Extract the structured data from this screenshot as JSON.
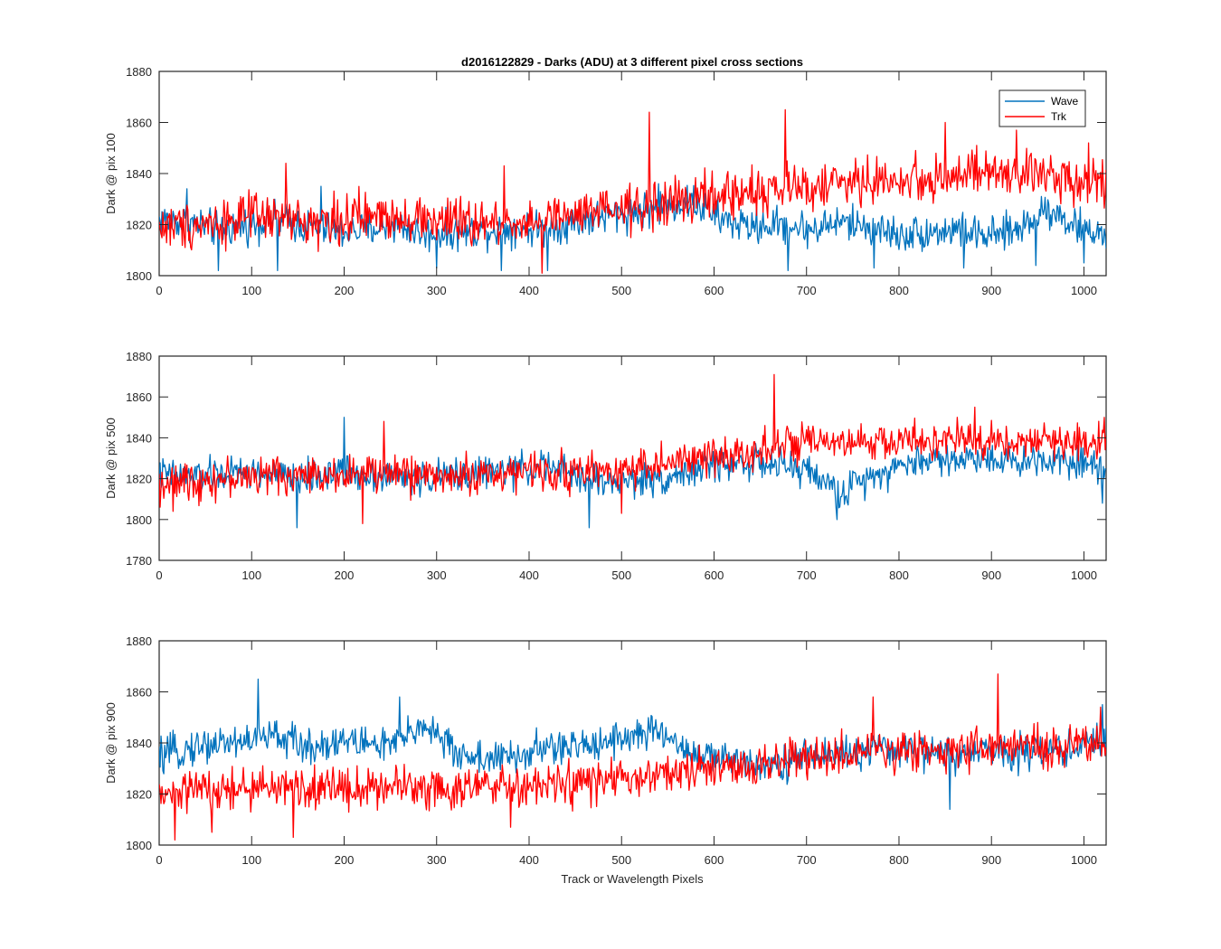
{
  "chart_data": {
    "type": "line",
    "title": "d2016122829 - Darks (ADU) at 3 different pixel cross sections",
    "xlabel": "Track or Wavelength Pixels",
    "legend": {
      "placement": "top-right",
      "entries": [
        "Wave",
        "Trk"
      ]
    },
    "colors": {
      "Wave": "#0072BD",
      "Trk": "#FF0000"
    },
    "grid": false,
    "subplots": [
      {
        "ylabel": "Dark @ pix 100",
        "xlim": [
          0,
          1024
        ],
        "ylim": [
          1800,
          1880
        ],
        "xticks": [
          0,
          100,
          200,
          300,
          400,
          500,
          600,
          700,
          800,
          900,
          1000
        ],
        "yticks": [
          1800,
          1820,
          1840,
          1860,
          1880
        ],
        "series": [
          {
            "name": "Wave",
            "x": [
              0,
              32,
              64,
              96,
              128,
              160,
              192,
              224,
              256,
              288,
              320,
              352,
              384,
              416,
              448,
              480,
              512,
              544,
              576,
              608,
              640,
              672,
              704,
              736,
              768,
              800,
              832,
              864,
              896,
              928,
              960,
              992,
              1024
            ],
            "y": [
              1822,
              1821,
              1818,
              1820,
              1822,
              1819,
              1817,
              1818,
              1820,
              1816,
              1817,
              1818,
              1819,
              1818,
              1821,
              1823,
              1825,
              1827,
              1829,
              1822,
              1819,
              1820,
              1818,
              1821,
              1819,
              1816,
              1817,
              1818,
              1815,
              1818,
              1827,
              1819,
              1816
            ],
            "noise": 6,
            "spikes": [
              [
                30,
                1834
              ],
              [
                64,
                1802
              ],
              [
                128,
                1802
              ],
              [
                175,
                1835
              ],
              [
                300,
                1803
              ],
              [
                370,
                1802
              ],
              [
                420,
                1802
              ],
              [
                540,
                1836
              ],
              [
                680,
                1802
              ],
              [
                773,
                1803
              ],
              [
                870,
                1803
              ],
              [
                948,
                1804
              ],
              [
                1000,
                1805
              ]
            ]
          },
          {
            "name": "Trk",
            "x": [
              0,
              32,
              64,
              96,
              128,
              160,
              192,
              224,
              256,
              288,
              320,
              352,
              384,
              416,
              448,
              480,
              512,
              544,
              576,
              608,
              640,
              672,
              704,
              736,
              768,
              800,
              832,
              864,
              896,
              928,
              960,
              992,
              1024
            ],
            "y": [
              1819,
              1820,
              1821,
              1823,
              1822,
              1821,
              1822,
              1823,
              1824,
              1822,
              1821,
              1820,
              1821,
              1822,
              1823,
              1825,
              1826,
              1828,
              1830,
              1831,
              1833,
              1834,
              1835,
              1836,
              1837,
              1837,
              1838,
              1839,
              1840,
              1839,
              1840,
              1838,
              1837
            ],
            "noise": 8,
            "spikes": [
              [
                137,
                1844
              ],
              [
                373,
                1843
              ],
              [
                414,
                1801
              ],
              [
                530,
                1864
              ],
              [
                677,
                1865
              ],
              [
                850,
                1860
              ],
              [
                927,
                1857
              ],
              [
                1005,
                1852
              ]
            ]
          }
        ]
      },
      {
        "ylabel": "Dark @ pix 500",
        "xlim": [
          0,
          1024
        ],
        "ylim": [
          1780,
          1880
        ],
        "xticks": [
          0,
          100,
          200,
          300,
          400,
          500,
          600,
          700,
          800,
          900,
          1000
        ],
        "yticks": [
          1780,
          1800,
          1820,
          1840,
          1860,
          1880
        ],
        "series": [
          {
            "name": "Wave",
            "x": [
              0,
              32,
              64,
              96,
              128,
              160,
              192,
              224,
              256,
              288,
              320,
              352,
              384,
              416,
              448,
              480,
              512,
              544,
              576,
              608,
              640,
              672,
              704,
              736,
              768,
              800,
              832,
              864,
              896,
              928,
              960,
              992,
              1024
            ],
            "y": [
              1822,
              1821,
              1822,
              1823,
              1821,
              1820,
              1824,
              1822,
              1821,
              1820,
              1822,
              1823,
              1824,
              1826,
              1822,
              1818,
              1819,
              1820,
              1824,
              1827,
              1828,
              1826,
              1824,
              1812,
              1822,
              1826,
              1830,
              1829,
              1831,
              1828,
              1830,
              1829,
              1825
            ],
            "noise": 7,
            "spikes": [
              [
                149,
                1796
              ],
              [
                200,
                1850
              ],
              [
                465,
                1796
              ],
              [
                733,
                1800
              ],
              [
                1020,
                1808
              ]
            ]
          },
          {
            "name": "Trk",
            "x": [
              0,
              32,
              64,
              96,
              128,
              160,
              192,
              224,
              256,
              288,
              320,
              352,
              384,
              416,
              448,
              480,
              512,
              544,
              576,
              608,
              640,
              672,
              704,
              736,
              768,
              800,
              832,
              864,
              896,
              928,
              960,
              992,
              1024
            ],
            "y": [
              1818,
              1819,
              1820,
              1821,
              1822,
              1821,
              1823,
              1822,
              1823,
              1822,
              1821,
              1822,
              1823,
              1824,
              1823,
              1824,
              1826,
              1827,
              1829,
              1831,
              1834,
              1836,
              1837,
              1836,
              1838,
              1838,
              1839,
              1838,
              1839,
              1838,
              1838,
              1838,
              1839
            ],
            "noise": 8,
            "spikes": [
              [
                15,
                1804
              ],
              [
                220,
                1798
              ],
              [
                243,
                1848
              ],
              [
                500,
                1803
              ],
              [
                665,
                1871
              ],
              [
                882,
                1855
              ],
              [
                1022,
                1850
              ]
            ]
          }
        ]
      },
      {
        "ylabel": "Dark @ pix 900",
        "xlim": [
          0,
          1024
        ],
        "ylim": [
          1800,
          1880
        ],
        "xticks": [
          0,
          100,
          200,
          300,
          400,
          500,
          600,
          700,
          800,
          900,
          1000
        ],
        "yticks": [
          1800,
          1820,
          1840,
          1860,
          1880
        ],
        "series": [
          {
            "name": "Wave",
            "x": [
              0,
              32,
              64,
              96,
              128,
              160,
              192,
              224,
              256,
              288,
              320,
              352,
              384,
              416,
              448,
              480,
              512,
              544,
              576,
              608,
              640,
              672,
              704,
              736,
              768,
              800,
              832,
              864,
              896,
              928,
              960,
              992,
              1024
            ],
            "y": [
              1834,
              1838,
              1840,
              1841,
              1843,
              1838,
              1841,
              1840,
              1839,
              1848,
              1836,
              1834,
              1834,
              1838,
              1838,
              1841,
              1843,
              1844,
              1836,
              1833,
              1833,
              1832,
              1835,
              1836,
              1836,
              1838,
              1837,
              1835,
              1837,
              1837,
              1837,
              1838,
              1842
            ],
            "noise": 6,
            "spikes": [
              [
                107,
                1865
              ],
              [
                260,
                1858
              ],
              [
                855,
                1814
              ],
              [
                1020,
                1855
              ]
            ]
          },
          {
            "name": "Trk",
            "x": [
              0,
              32,
              64,
              96,
              128,
              160,
              192,
              224,
              256,
              288,
              320,
              352,
              384,
              416,
              448,
              480,
              512,
              544,
              576,
              608,
              640,
              672,
              704,
              736,
              768,
              800,
              832,
              864,
              896,
              928,
              960,
              992,
              1024
            ],
            "y": [
              1818,
              1822,
              1821,
              1822,
              1823,
              1822,
              1823,
              1822,
              1824,
              1823,
              1822,
              1823,
              1822,
              1823,
              1824,
              1825,
              1826,
              1827,
              1829,
              1830,
              1831,
              1833,
              1834,
              1835,
              1836,
              1837,
              1837,
              1838,
              1839,
              1838,
              1838,
              1839,
              1839
            ],
            "noise": 7,
            "spikes": [
              [
                17,
                1802
              ],
              [
                57,
                1805
              ],
              [
                145,
                1803
              ],
              [
                380,
                1807
              ],
              [
                772,
                1858
              ],
              [
                907,
                1867
              ],
              [
                1018,
                1854
              ]
            ]
          }
        ]
      }
    ]
  }
}
